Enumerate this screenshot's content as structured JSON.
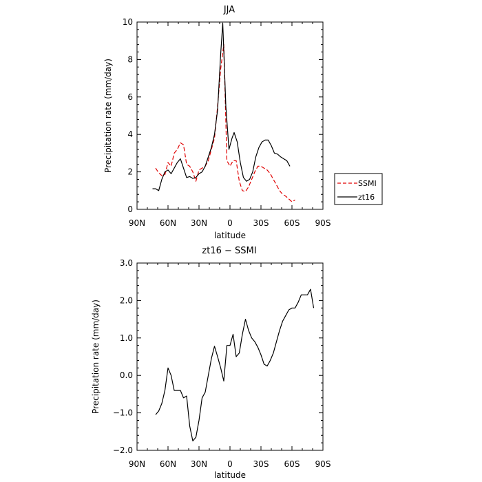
{
  "chart_data": [
    {
      "type": "line",
      "title": "JJA",
      "xlabel": "latitude",
      "ylabel": "Precipitation rate (mm/day)",
      "xlim": [
        90,
        -90
      ],
      "ylim": [
        0,
        10
      ],
      "x_ticks": [
        90,
        60,
        30,
        0,
        -30,
        -60,
        -90
      ],
      "x_tick_labels": [
        "90N",
        "60N",
        "30N",
        "0",
        "30S",
        "60S",
        "90S"
      ],
      "y_ticks": [
        0,
        2,
        4,
        6,
        8,
        10
      ],
      "y_tick_labels": [
        "0",
        "2",
        "4",
        "6",
        "8",
        "10"
      ],
      "legend_position": "right",
      "series": [
        {
          "name": "SSMI",
          "color": "#e00000",
          "dash": true,
          "points": [
            [
              72,
              2.2
            ],
            [
              69,
              1.95
            ],
            [
              66,
              1.8
            ],
            [
              63,
              1.85
            ],
            [
              60,
              2.5
            ],
            [
              57,
              2.3
            ],
            [
              54,
              3.0
            ],
            [
              51,
              3.2
            ],
            [
              48,
              3.55
            ],
            [
              45,
              3.45
            ],
            [
              42,
              2.4
            ],
            [
              39,
              2.3
            ],
            [
              36,
              2.0
            ],
            [
              33,
              1.5
            ],
            [
              30,
              2.1
            ],
            [
              27,
              2.2
            ],
            [
              24,
              2.3
            ],
            [
              21,
              2.6
            ],
            [
              18,
              3.2
            ],
            [
              15,
              3.8
            ],
            [
              12,
              5.5
            ],
            [
              9,
              7.5
            ],
            [
              6,
              8.8
            ],
            [
              3,
              2.6
            ],
            [
              0,
              2.3
            ],
            [
              -3,
              2.6
            ],
            [
              -6,
              2.6
            ],
            [
              -9,
              1.5
            ],
            [
              -12,
              1.0
            ],
            [
              -15,
              0.95
            ],
            [
              -18,
              1.2
            ],
            [
              -21,
              1.6
            ],
            [
              -24,
              2.0
            ],
            [
              -27,
              2.3
            ],
            [
              -30,
              2.3
            ],
            [
              -33,
              2.2
            ],
            [
              -36,
              2.1
            ],
            [
              -39,
              1.9
            ],
            [
              -42,
              1.6
            ],
            [
              -45,
              1.3
            ],
            [
              -48,
              1.0
            ],
            [
              -51,
              0.8
            ],
            [
              -54,
              0.7
            ],
            [
              -57,
              0.55
            ],
            [
              -60,
              0.4
            ],
            [
              -63,
              0.5
            ]
          ]
        },
        {
          "name": "zt16",
          "color": "#000000",
          "dash": false,
          "points": [
            [
              75,
              1.1
            ],
            [
              72,
              1.1
            ],
            [
              69,
              1.0
            ],
            [
              66,
              1.6
            ],
            [
              63,
              2.0
            ],
            [
              60,
              2.1
            ],
            [
              57,
              1.9
            ],
            [
              54,
              2.2
            ],
            [
              51,
              2.5
            ],
            [
              48,
              2.7
            ],
            [
              45,
              2.2
            ],
            [
              42,
              1.7
            ],
            [
              39,
              1.75
            ],
            [
              36,
              1.65
            ],
            [
              33,
              1.7
            ],
            [
              30,
              1.9
            ],
            [
              27,
              2.0
            ],
            [
              24,
              2.3
            ],
            [
              21,
              2.8
            ],
            [
              18,
              3.3
            ],
            [
              15,
              4.0
            ],
            [
              12,
              5.3
            ],
            [
              9,
              8.3
            ],
            [
              7,
              9.95
            ],
            [
              4,
              5.5
            ],
            [
              1,
              3.2
            ],
            [
              -2,
              3.8
            ],
            [
              -4,
              4.1
            ],
            [
              -7,
              3.6
            ],
            [
              -10,
              2.5
            ],
            [
              -13,
              1.7
            ],
            [
              -16,
              1.5
            ],
            [
              -19,
              1.6
            ],
            [
              -22,
              2.0
            ],
            [
              -25,
              2.8
            ],
            [
              -28,
              3.3
            ],
            [
              -31,
              3.6
            ],
            [
              -34,
              3.7
            ],
            [
              -37,
              3.7
            ],
            [
              -40,
              3.4
            ],
            [
              -43,
              3.0
            ],
            [
              -46,
              2.95
            ],
            [
              -49,
              2.8
            ],
            [
              -52,
              2.7
            ],
            [
              -55,
              2.6
            ],
            [
              -58,
              2.3
            ]
          ]
        }
      ]
    },
    {
      "type": "line",
      "title": "zt16 − SSMI",
      "xlabel": "latitude",
      "ylabel": "Precipitation rate (mm/day)",
      "xlim": [
        90,
        -90
      ],
      "ylim": [
        -2,
        3
      ],
      "x_ticks": [
        90,
        60,
        30,
        0,
        -30,
        -60,
        -90
      ],
      "x_tick_labels": [
        "90N",
        "60N",
        "30N",
        "0",
        "30S",
        "60S",
        "90S"
      ],
      "y_ticks": [
        -2,
        -1,
        0,
        1,
        2,
        3
      ],
      "y_tick_labels": [
        "−2.0",
        "−1.0",
        "0.0",
        "1.0",
        "2.0",
        "3.0"
      ],
      "series": [
        {
          "color": "#000000",
          "dash": false,
          "points": [
            [
              72,
              -1.05
            ],
            [
              69,
              -0.95
            ],
            [
              66,
              -0.75
            ],
            [
              63,
              -0.4
            ],
            [
              60,
              0.2
            ],
            [
              57,
              0.0
            ],
            [
              54,
              -0.4
            ],
            [
              51,
              -0.4
            ],
            [
              48,
              -0.4
            ],
            [
              45,
              -0.6
            ],
            [
              42,
              -0.55
            ],
            [
              39,
              -1.35
            ],
            [
              36,
              -1.75
            ],
            [
              33,
              -1.65
            ],
            [
              30,
              -1.2
            ],
            [
              27,
              -0.6
            ],
            [
              24,
              -0.45
            ],
            [
              21,
              0.0
            ],
            [
              18,
              0.45
            ],
            [
              15,
              0.78
            ],
            [
              12,
              0.5
            ],
            [
              9,
              0.2
            ],
            [
              6,
              -0.15
            ],
            [
              3,
              0.8
            ],
            [
              0,
              0.8
            ],
            [
              -3,
              1.1
            ],
            [
              -6,
              0.5
            ],
            [
              -9,
              0.6
            ],
            [
              -12,
              1.1
            ],
            [
              -15,
              1.5
            ],
            [
              -18,
              1.2
            ],
            [
              -21,
              1.0
            ],
            [
              -24,
              0.9
            ],
            [
              -27,
              0.75
            ],
            [
              -30,
              0.55
            ],
            [
              -33,
              0.3
            ],
            [
              -36,
              0.25
            ],
            [
              -39,
              0.4
            ],
            [
              -42,
              0.6
            ],
            [
              -45,
              0.9
            ],
            [
              -48,
              1.2
            ],
            [
              -51,
              1.45
            ],
            [
              -54,
              1.6
            ],
            [
              -57,
              1.75
            ],
            [
              -60,
              1.8
            ],
            [
              -63,
              1.8
            ],
            [
              -66,
              1.95
            ],
            [
              -69,
              2.15
            ],
            [
              -72,
              2.15
            ],
            [
              -75,
              2.15
            ],
            [
              -78,
              2.3
            ],
            [
              -81,
              1.8
            ]
          ]
        }
      ]
    }
  ]
}
